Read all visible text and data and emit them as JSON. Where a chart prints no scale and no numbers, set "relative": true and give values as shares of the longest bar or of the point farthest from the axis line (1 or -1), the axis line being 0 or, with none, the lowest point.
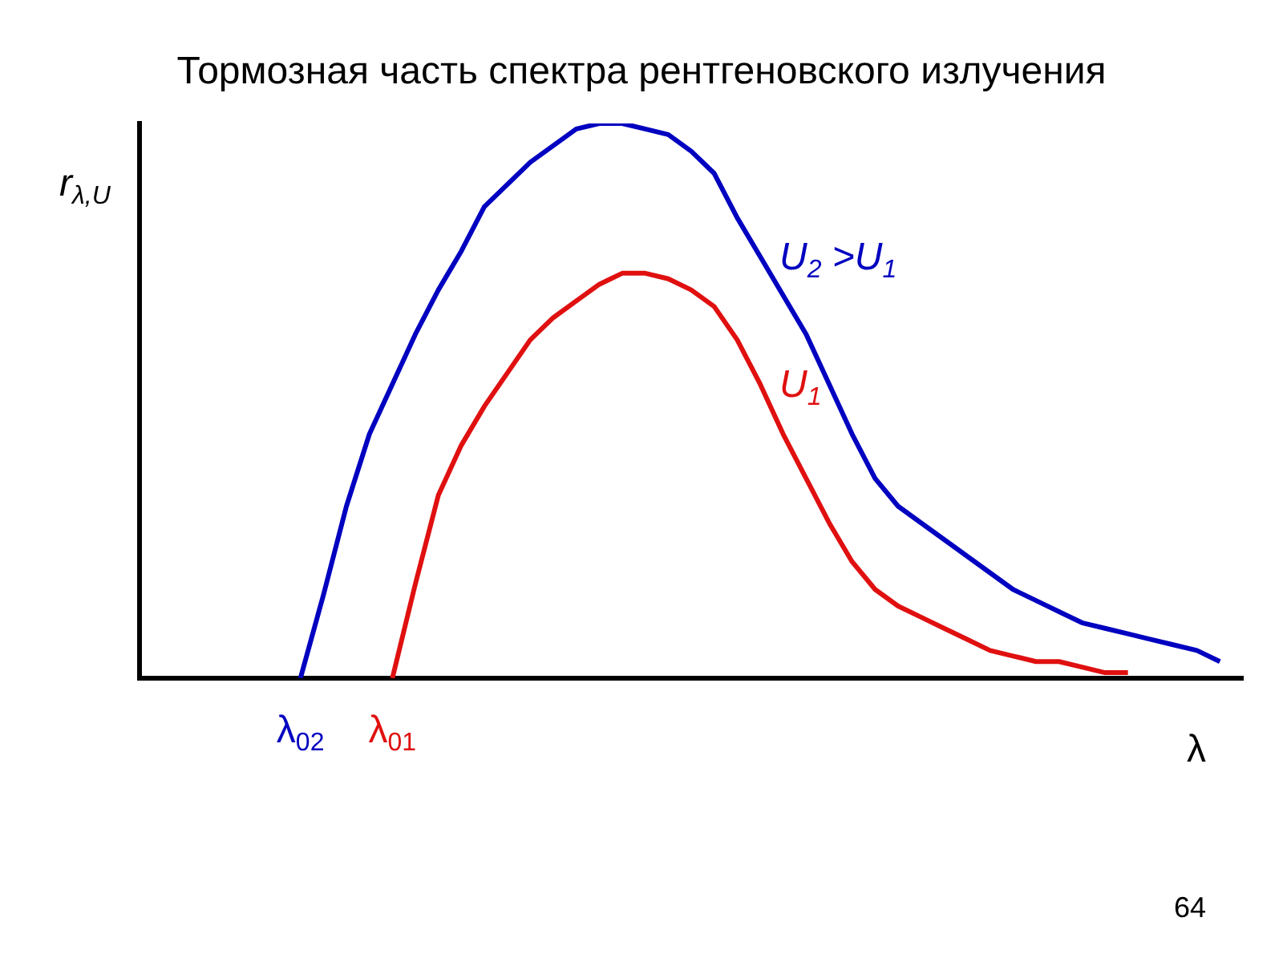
{
  "chart_data": {
    "type": "line",
    "title": "Тормозная часть спектра рентгеновского излучения",
    "xlabel": "λ",
    "ylabel": "r$_{λ,U}$",
    "relative": true,
    "legend": false,
    "grid": false,
    "marker": "none",
    "annotations": [
      "64"
    ],
    "categories": [
      null,
      null,
      null,
      null,
      null,
      null,
      null,
      "λ$_{02}$",
      null,
      null,
      null,
      "λ$_{01}$",
      null,
      null,
      null,
      null,
      null,
      null,
      null,
      null,
      null,
      null,
      null,
      null,
      null,
      null,
      null,
      null,
      null,
      null,
      null,
      null,
      null,
      null,
      null,
      null,
      null,
      null,
      null,
      null,
      null,
      null,
      null,
      null,
      null,
      null,
      null,
      null,
      null
    ],
    "series": [
      {
        "name": "U$_{2}$ >U$_{1}$",
        "color": "#0000c0",
        "values": [
          null,
          null,
          null,
          null,
          null,
          null,
          null,
          0,
          0.15,
          0.31,
          0.44,
          0.53,
          0.62,
          0.7,
          0.77,
          0.85,
          0.89,
          0.93,
          0.96,
          0.99,
          1,
          1,
          0.99,
          0.98,
          0.95,
          0.91,
          0.83,
          0.76,
          0.69,
          0.62,
          0.53,
          0.44,
          0.36,
          0.31,
          0.28,
          0.25,
          0.22,
          0.19,
          0.16,
          0.14,
          0.12,
          0.1,
          0.09,
          0.08,
          0.07,
          0.06,
          0.05,
          0.03,
          null
        ]
      },
      {
        "name": "U$_{1}$",
        "color": "#e01010",
        "values": [
          null,
          null,
          null,
          null,
          null,
          null,
          null,
          null,
          null,
          null,
          null,
          0,
          0.17,
          0.33,
          0.42,
          0.49,
          0.55,
          0.61,
          0.65,
          0.68,
          0.71,
          0.73,
          0.73,
          0.72,
          0.7,
          0.67,
          0.61,
          0.53,
          0.44,
          0.36,
          0.28,
          0.21,
          0.16,
          0.13,
          0.11,
          0.09,
          0.07,
          0.05,
          0.04,
          0.03,
          0.03,
          0.02,
          0.01,
          0.01,
          null,
          null,
          null,
          null,
          null
        ]
      }
    ]
  }
}
